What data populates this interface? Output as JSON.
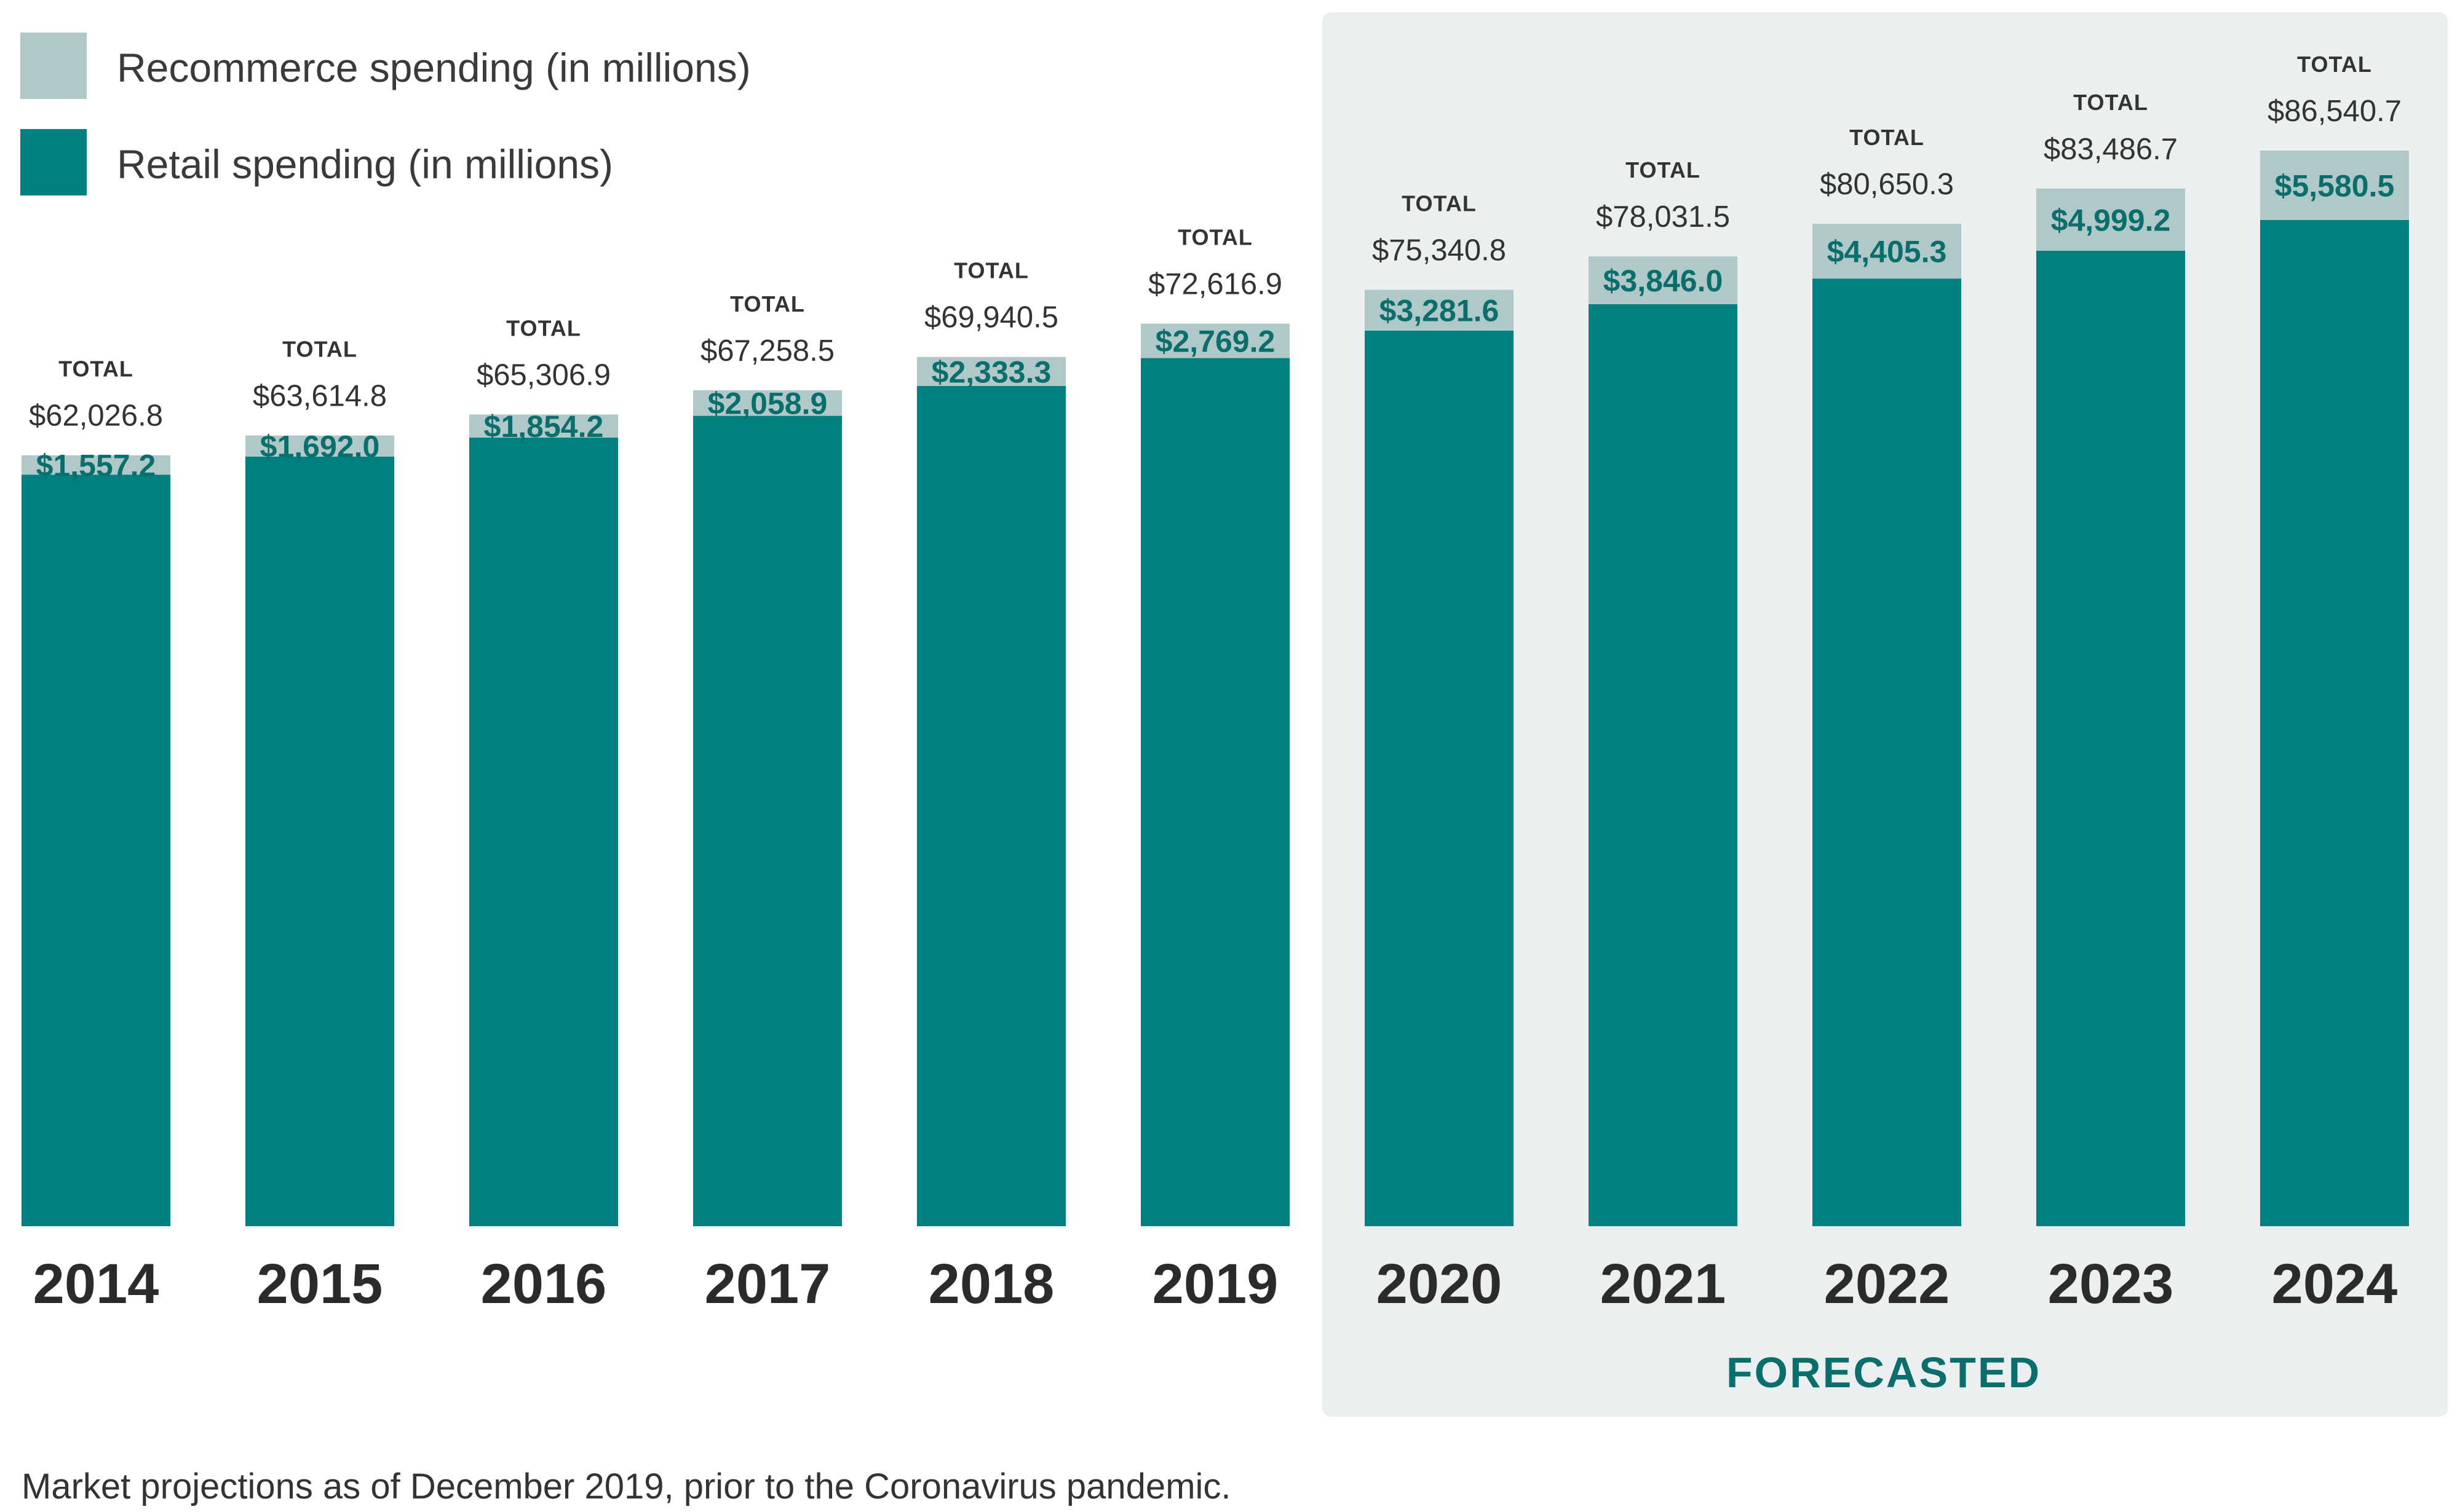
{
  "colors": {
    "retail": "#008080",
    "recommerce": "#b0c9c8",
    "forecast_bg": "#ebeff0",
    "recommerce_label": "#0a6f6c",
    "forecast_text": "#0a6f6c"
  },
  "legend": [
    {
      "key": "recommerce",
      "label": "Recommerce spending (in millions)"
    },
    {
      "key": "retail",
      "label": "Retail spending (in millions)"
    }
  ],
  "forecast_label": "FORECASTED",
  "footnote": "Market projections as of December 2019, prior to the Coronavirus pandemic.",
  "total_word": "TOTAL",
  "chart_data": {
    "type": "bar",
    "stacked": true,
    "title": "",
    "xlabel": "",
    "ylabel": "",
    "categories": [
      "2014",
      "2015",
      "2016",
      "2017",
      "2018",
      "2019",
      "2020",
      "2021",
      "2022",
      "2023",
      "2024"
    ],
    "series": [
      {
        "name": "Retail spending (in millions)",
        "values": [
          60469.6,
          61922.8,
          63452.7,
          65199.6,
          67607.2,
          69847.7,
          72059.2,
          74185.5,
          76245.0,
          78487.5,
          80960.2
        ]
      },
      {
        "name": "Recommerce spending (in millions)",
        "values": [
          1557.2,
          1692.0,
          1854.2,
          2058.9,
          2333.3,
          2769.2,
          3281.6,
          3846.0,
          4405.3,
          4999.2,
          5580.5
        ]
      }
    ],
    "recommerce_labels": [
      "$1,557.2",
      "$1,692.0",
      "$1,854.2",
      "$2,058.9",
      "$2,333.3",
      "$2,769.2",
      "$3,281.6",
      "$3,846.0",
      "$4,405.3",
      "$4,999.2",
      "$5,580.5"
    ],
    "totals": [
      62026.8,
      63614.8,
      65306.9,
      67258.5,
      69940.5,
      72616.9,
      75340.8,
      78031.5,
      80650.3,
      83486.7,
      86540.7
    ],
    "total_labels": [
      "$62,026.8",
      "$63,614.8",
      "$65,306.9",
      "$67,258.5",
      "$69,940.5",
      "$72,616.9",
      "$75,340.8",
      "$78,031.5",
      "$80,650.3",
      "$83,486.7",
      "$86,540.7"
    ],
    "forecast_start_index": 6,
    "ylim": [
      0,
      86540.7
    ]
  }
}
